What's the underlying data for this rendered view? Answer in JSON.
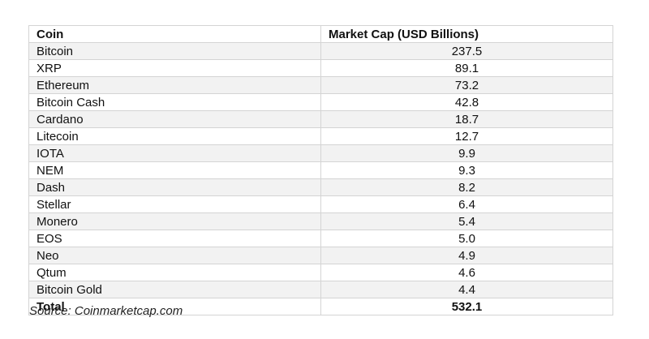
{
  "table": {
    "headers": [
      "Coin",
      "Market Cap (USD Billions)"
    ],
    "rows": [
      [
        "Bitcoin",
        "237.5"
      ],
      [
        "XRP",
        "89.1"
      ],
      [
        "Ethereum",
        "73.2"
      ],
      [
        "Bitcoin Cash",
        "42.8"
      ],
      [
        "Cardano",
        "18.7"
      ],
      [
        "Litecoin",
        "12.7"
      ],
      [
        "IOTA",
        "9.9"
      ],
      [
        "NEM",
        "9.3"
      ],
      [
        "Dash",
        "8.2"
      ],
      [
        "Stellar",
        "6.4"
      ],
      [
        "Monero",
        "5.4"
      ],
      [
        "EOS",
        "5.0"
      ],
      [
        "Neo",
        "4.9"
      ],
      [
        "Qtum",
        "4.6"
      ],
      [
        "Bitcoin Gold",
        "4.4"
      ]
    ],
    "total_label": "Total",
    "total_value": "532.1"
  },
  "source": "Source: Coinmarketcap.com"
}
